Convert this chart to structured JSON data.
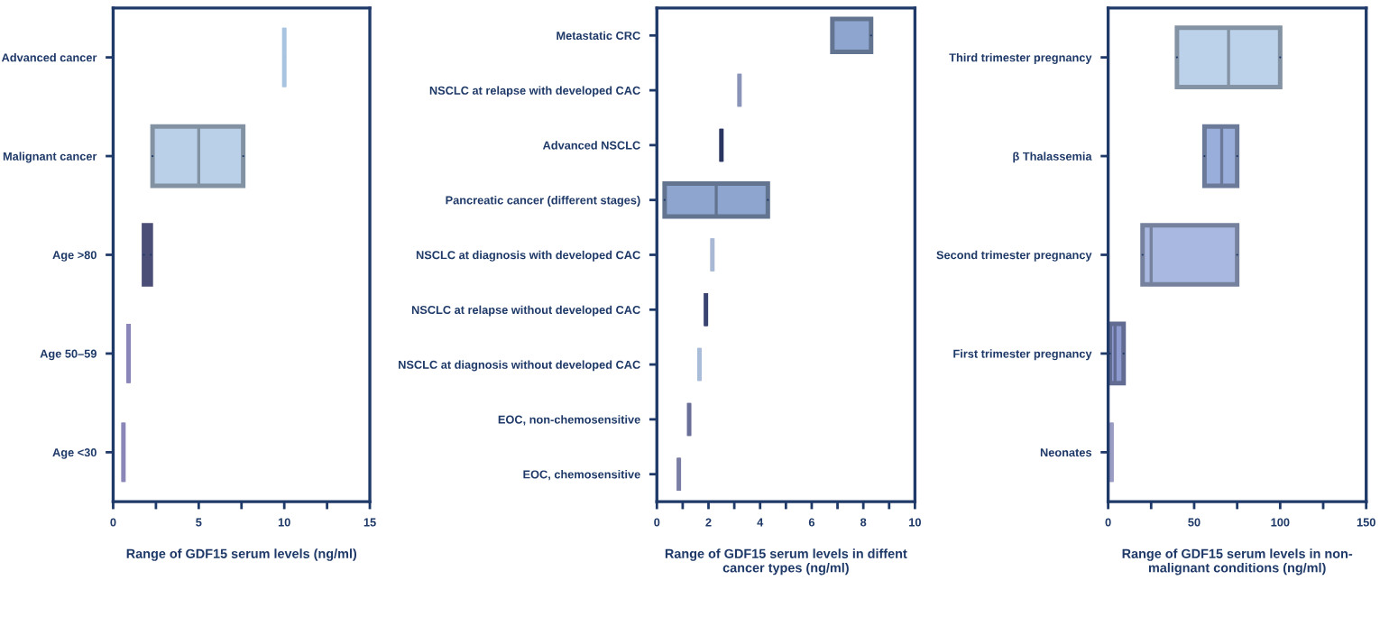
{
  "chart_data": [
    {
      "type": "box",
      "orientation": "horizontal",
      "xlabel": "Range of GDF15 serum levels (ng/ml)",
      "categories": [
        "Advanced cancer",
        "Malignant cancer",
        "Age >80",
        "Age 50–59",
        "Age <30"
      ],
      "boxes": [
        {
          "low": 10,
          "q1": 10,
          "median": 10,
          "q3": 10,
          "high": 10
        },
        {
          "low": 2.3,
          "q1": 2.3,
          "median": 5,
          "q3": 7.6,
          "high": 7.6
        },
        {
          "low": 1.8,
          "q1": 1.8,
          "median": 2,
          "q3": 2.2,
          "high": 2.2
        },
        {
          "low": 0.9,
          "q1": 0.9,
          "median": 0.9,
          "q3": 0.9,
          "high": 0.9
        },
        {
          "low": 0.6,
          "q1": 0.6,
          "median": 0.6,
          "q3": 0.6,
          "high": 0.6
        }
      ],
      "colors": [
        "#a9c4e0",
        "#b9d0e8",
        "#6b6fa8",
        "#8a86b8",
        "#8a86b8"
      ],
      "xlim": [
        0,
        15
      ],
      "xticks": [
        0,
        {
          "value": 2.5,
          "label": null
        },
        5,
        {
          "value": 7.5,
          "label": null
        },
        10,
        {
          "value": 12.5,
          "label": null
        },
        15
      ]
    },
    {
      "type": "box",
      "orientation": "horizontal",
      "xlabel": "Range of GDF15 serum levels in diffent\ncancer types (ng/ml)",
      "categories": [
        "Metastatic CRC",
        "NSCLC at relapse with developed CAC",
        "Advanced NSCLC",
        "Pancreatic cancer (different stages)",
        "NSCLC at diagnosis with developed CAC",
        "NSCLC at relapse without developed CAC",
        "NSCLC at diagnosis without developed CAC",
        "EOC, non-chemosensitive",
        "EOC, chemosensitive"
      ],
      "boxes": [
        {
          "low": 6.8,
          "q1": 6.8,
          "median": 6.8,
          "q3": 8.3,
          "high": 8.3
        },
        {
          "low": 3.2,
          "q1": 3.2,
          "median": 3.2,
          "q3": 3.2,
          "high": 3.2
        },
        {
          "low": 2.5,
          "q1": 2.5,
          "median": 2.5,
          "q3": 2.5,
          "high": 2.5
        },
        {
          "low": 0.3,
          "q1": 0.3,
          "median": 2.3,
          "q3": 4.3,
          "high": 4.3
        },
        {
          "low": 2.15,
          "q1": 2.15,
          "median": 2.15,
          "q3": 2.15,
          "high": 2.15
        },
        {
          "low": 1.9,
          "q1": 1.9,
          "median": 1.9,
          "q3": 1.9,
          "high": 1.9
        },
        {
          "low": 1.65,
          "q1": 1.65,
          "median": 1.65,
          "q3": 1.65,
          "high": 1.65
        },
        {
          "low": 1.25,
          "q1": 1.25,
          "median": 1.25,
          "q3": 1.25,
          "high": 1.25
        },
        {
          "low": 0.85,
          "q1": 0.85,
          "median": 0.85,
          "q3": 0.85,
          "high": 0.85
        }
      ],
      "colors": [
        "#8ea6cf",
        "#8a93b8",
        "#2a3560",
        "#8ea6cf",
        "#a9b8d4",
        "#3a4470",
        "#a9bcd8",
        "#6a6f98",
        "#7a7ea4"
      ],
      "xlim": [
        0,
        10
      ],
      "xticks": [
        0,
        {
          "value": 1,
          "label": null
        },
        2,
        {
          "value": 3,
          "label": null
        },
        4,
        {
          "value": 5,
          "label": null
        },
        6,
        {
          "value": 7,
          "label": null
        },
        8,
        {
          "value": 9,
          "label": null
        },
        10
      ]
    },
    {
      "type": "box",
      "orientation": "horizontal",
      "xlabel": "Range of GDF15 serum levels in non-\nmalignant conditions (ng/ml)",
      "categories": [
        "Third trimester pregnancy",
        "β Thalassemia",
        "Second trimester pregnancy",
        "First trimester pregnancy",
        "Neonates"
      ],
      "boxes": [
        {
          "low": 40,
          "q1": 40,
          "median": 70,
          "q3": 100,
          "high": 100
        },
        {
          "low": 56,
          "q1": 56,
          "median": 66,
          "q3": 75,
          "high": 75
        },
        {
          "low": 20,
          "q1": 20,
          "median": 25,
          "q3": 75,
          "high": 75
        },
        {
          "low": 1,
          "q1": 1,
          "median": 4,
          "q3": 9,
          "high": 9
        },
        {
          "low": 2,
          "q1": 2,
          "median": 2,
          "q3": 2,
          "high": 2
        }
      ],
      "colors": [
        "#bcd2ea",
        "#9aaedb",
        "#a9b8e0",
        "#8c9ad0",
        "#9a9cc4"
      ],
      "xlim": [
        0,
        150
      ],
      "xticks": [
        0,
        {
          "value": 25,
          "label": null
        },
        50,
        {
          "value": 75,
          "label": null
        },
        100,
        {
          "value": 125,
          "label": null
        },
        150
      ]
    }
  ]
}
